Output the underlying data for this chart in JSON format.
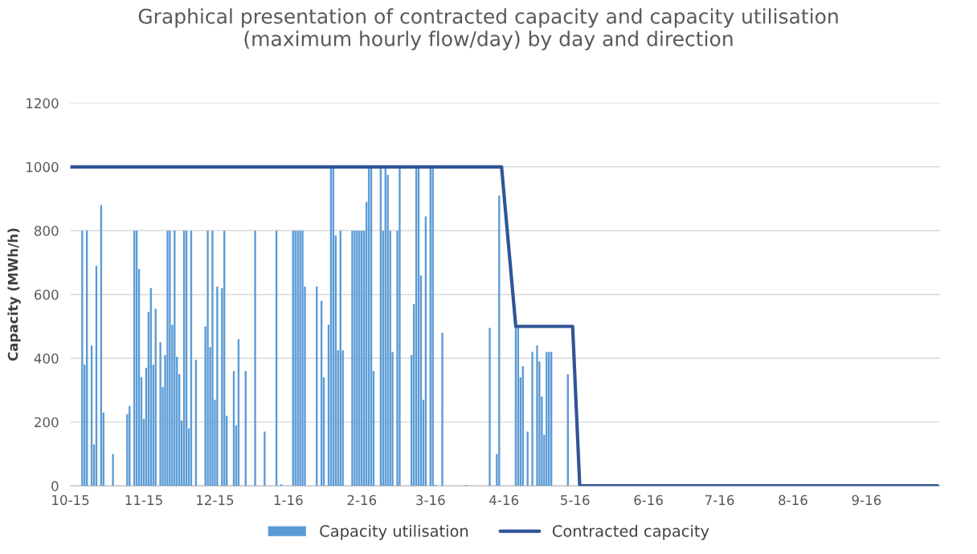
{
  "chart_data": {
    "type": "bar",
    "title": "Graphical presentation of contracted capacity and capacity utilisation\n(maximum hourly flow/day) by day and direction",
    "ylabel": "Capacity (MWh/h)",
    "xlim": [
      "2015-10-01",
      "2016-10-02"
    ],
    "xticks": [
      {
        "value": "2015-10-01",
        "label": "10-15"
      },
      {
        "value": "2015-11-01",
        "label": "11-15"
      },
      {
        "value": "2015-12-01",
        "label": "12-15"
      },
      {
        "value": "2016-01-01",
        "label": "1-16"
      },
      {
        "value": "2016-02-01",
        "label": "2-16"
      },
      {
        "value": "2016-03-01",
        "label": "3-16"
      },
      {
        "value": "2016-04-01",
        "label": "4-16"
      },
      {
        "value": "2016-05-01",
        "label": "5-16"
      },
      {
        "value": "2016-06-01",
        "label": "6-16"
      },
      {
        "value": "2016-07-01",
        "label": "7-16"
      },
      {
        "value": "2016-08-01",
        "label": "8-16"
      },
      {
        "value": "2016-09-01",
        "label": "9-16"
      }
    ],
    "ylim": [
      0,
      1200
    ],
    "yticks": [
      0,
      200,
      400,
      600,
      800,
      1000,
      1200
    ],
    "grid": "y",
    "legend": "bottom",
    "series": [
      {
        "name": "Capacity utilisation",
        "color": "#5b9bd5",
        "x": [
          "2015-10-06",
          "2015-10-07",
          "2015-10-08",
          "2015-10-10",
          "2015-10-11",
          "2015-10-12",
          "2015-10-14",
          "2015-10-15",
          "2015-10-19",
          "2015-10-25",
          "2015-10-26",
          "2015-10-28",
          "2015-10-29",
          "2015-10-30",
          "2015-10-31",
          "2015-11-01",
          "2015-11-02",
          "2015-11-03",
          "2015-11-04",
          "2015-11-05",
          "2015-11-06",
          "2015-11-08",
          "2015-11-09",
          "2015-11-10",
          "2015-11-11",
          "2015-11-12",
          "2015-11-13",
          "2015-11-14",
          "2015-11-15",
          "2015-11-16",
          "2015-11-17",
          "2015-11-18",
          "2015-11-19",
          "2015-11-20",
          "2015-11-21",
          "2015-11-23",
          "2015-11-27",
          "2015-11-28",
          "2015-11-29",
          "2015-11-30",
          "2015-12-01",
          "2015-12-02",
          "2015-12-04",
          "2015-12-05",
          "2015-12-06",
          "2015-12-09",
          "2015-12-10",
          "2015-12-11",
          "2015-12-14",
          "2015-12-18",
          "2015-12-22",
          "2015-12-27",
          "2015-12-29",
          "2016-01-03",
          "2016-01-04",
          "2016-01-05",
          "2016-01-06",
          "2016-01-07",
          "2016-01-08",
          "2016-01-13",
          "2016-01-15",
          "2016-01-16",
          "2016-01-18",
          "2016-01-19",
          "2016-01-20",
          "2016-01-21",
          "2016-01-22",
          "2016-01-23",
          "2016-01-24",
          "2016-01-28",
          "2016-01-29",
          "2016-01-30",
          "2016-01-31",
          "2016-02-01",
          "2016-02-02",
          "2016-02-03",
          "2016-02-04",
          "2016-02-05",
          "2016-02-06",
          "2016-02-09",
          "2016-02-10",
          "2016-02-11",
          "2016-02-12",
          "2016-02-13",
          "2016-02-14",
          "2016-02-16",
          "2016-02-17",
          "2016-02-22",
          "2016-02-23",
          "2016-02-24",
          "2016-02-25",
          "2016-02-26",
          "2016-02-27",
          "2016-02-28",
          "2016-03-01",
          "2016-03-02",
          "2016-03-03",
          "2016-03-06",
          "2016-03-16",
          "2016-03-26",
          "2016-03-29",
          "2016-03-30",
          "2016-04-06",
          "2016-04-07",
          "2016-04-08",
          "2016-04-09",
          "2016-04-11",
          "2016-04-13",
          "2016-04-15",
          "2016-04-16",
          "2016-04-17",
          "2016-04-18",
          "2016-04-19",
          "2016-04-20",
          "2016-04-21",
          "2016-04-28"
        ],
        "values": [
          800,
          380,
          800,
          440,
          130,
          690,
          880,
          230,
          100,
          225,
          250,
          800,
          800,
          680,
          340,
          210,
          370,
          545,
          620,
          380,
          555,
          450,
          310,
          410,
          800,
          800,
          505,
          800,
          405,
          350,
          205,
          800,
          800,
          180,
          800,
          395,
          500,
          800,
          435,
          800,
          270,
          625,
          620,
          800,
          220,
          360,
          190,
          460,
          360,
          800,
          170,
          800,
          5,
          800,
          800,
          800,
          800,
          800,
          625,
          625,
          580,
          340,
          505,
          1000,
          1000,
          785,
          425,
          800,
          425,
          800,
          800,
          800,
          800,
          800,
          800,
          890,
          1000,
          1000,
          360,
          1000,
          800,
          1000,
          975,
          800,
          420,
          800,
          1000,
          410,
          570,
          1000,
          1000,
          660,
          270,
          845,
          1000,
          1000,
          3,
          480,
          3,
          495,
          100,
          910,
          500,
          500,
          340,
          375,
          170,
          420,
          440,
          390,
          280,
          160,
          420,
          420,
          420,
          350
        ]
      },
      {
        "name": "Contracted capacity",
        "type": "line",
        "color": "#2f5597",
        "x": [
          "2015-10-01",
          "2016-03-31",
          "2016-04-06",
          "2016-04-30",
          "2016-05-03",
          "2016-10-01"
        ],
        "values": [
          1000,
          1000,
          500,
          500,
          0,
          0
        ]
      }
    ]
  }
}
